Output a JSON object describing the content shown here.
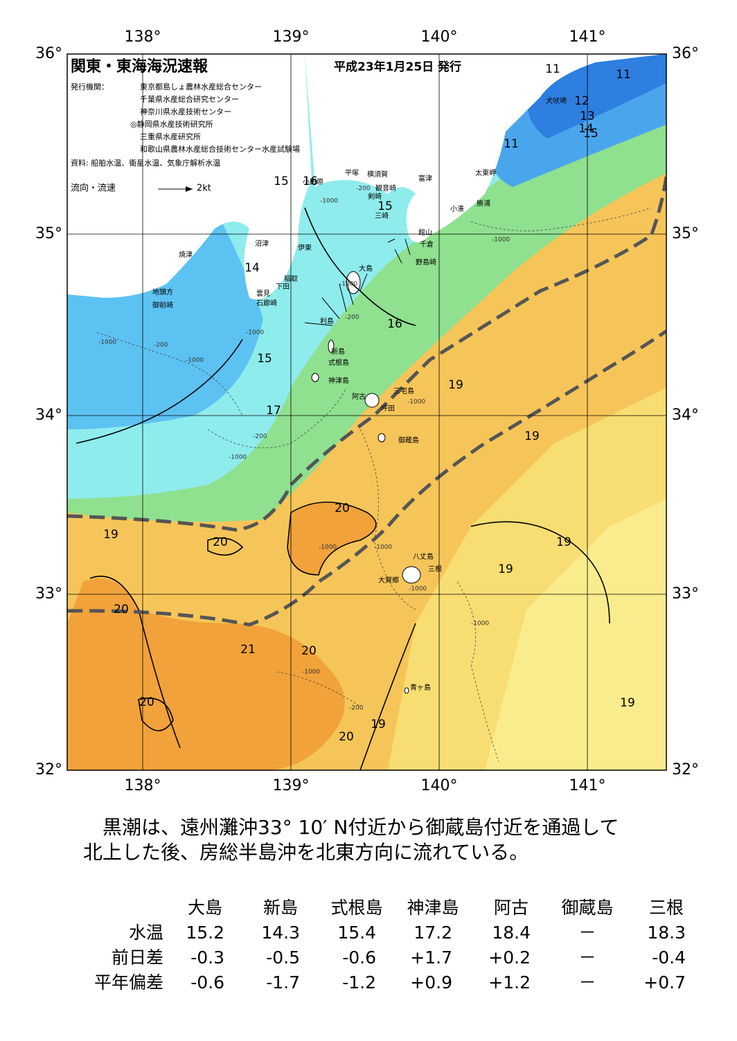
{
  "header": {
    "title": "関東・東海海況速報",
    "date": "平成23年1月25日 発行",
    "publisher_label": "発行機関：",
    "publishers": [
      "東京都島しょ農林水産総合センター",
      "千葉県水産総合研究センター",
      "神奈川県水産技術センター",
      "◎静岡県水産技術研究所",
      "三重県水産研究所",
      "和歌山県農林水産総合技術センター水産試験場"
    ],
    "source": "資料: 船舶水温、衛星水温、気象庁解析水温",
    "legend_label": "流向・流速",
    "legend_scale": "2kt"
  },
  "axes": {
    "lon": [
      "138°",
      "139°",
      "140°",
      "141°"
    ],
    "lat": [
      "36°",
      "35°",
      "34°",
      "33°",
      "32°"
    ]
  },
  "places": [
    "犬吠埼",
    "太東岬",
    "勝浦",
    "小湊",
    "富津",
    "館山",
    "千倉",
    "野島崎",
    "横須賀",
    "観音崎",
    "平塚",
    "小田原",
    "剣崎",
    "三崎",
    "大島",
    "沼津",
    "伊東",
    "焼津",
    "稲取",
    "下田",
    "雲見",
    "石廊崎",
    "地頭方",
    "御前崎",
    "利島",
    "新島",
    "式根島",
    "神津島",
    "三宅島",
    "阿古",
    "坪田",
    "御蔵島",
    "八丈島",
    "三根",
    "大賀郷",
    "青ヶ島"
  ],
  "contours": [
    "11",
    "11",
    "11",
    "12",
    "13",
    "14",
    "15",
    "15",
    "16",
    "15",
    "14",
    "15",
    "16",
    "17",
    "19",
    "19",
    "20",
    "19",
    "20",
    "19",
    "19",
    "20",
    "21",
    "20",
    "20",
    "19",
    "19",
    "20"
  ],
  "depths": [
    "-1000",
    "-200",
    "-1000",
    "-200",
    "-1000",
    "-1000",
    "-200",
    "-1000",
    "-1000",
    "-200",
    "-1000",
    "-1000",
    "-1000",
    "-1000",
    "-1000",
    "-200",
    "-1000",
    "-1000"
  ],
  "summary": "黒潮は、遠州灘沖33° 10′ N付近から御蔵島付近を通過して北上した後、房総半島沖を北東方向に流れている。",
  "table": {
    "columns": [
      "大島",
      "新島",
      "式根島",
      "神津島",
      "阿古",
      "御蔵島",
      "三根"
    ],
    "rows": [
      {
        "label": "水温",
        "values": [
          "15.2",
          "14.3",
          "15.4",
          "17.2",
          "18.4",
          "－",
          "18.3"
        ]
      },
      {
        "label": "前日差",
        "values": [
          "-0.3",
          "-0.5",
          "-0.6",
          "+1.7",
          "+0.2",
          "－",
          "-0.4"
        ]
      },
      {
        "label": "平年偏差",
        "values": [
          "-0.6",
          "-1.7",
          "-1.2",
          "+0.9",
          "+1.2",
          "－",
          "+0.7"
        ]
      }
    ]
  }
}
